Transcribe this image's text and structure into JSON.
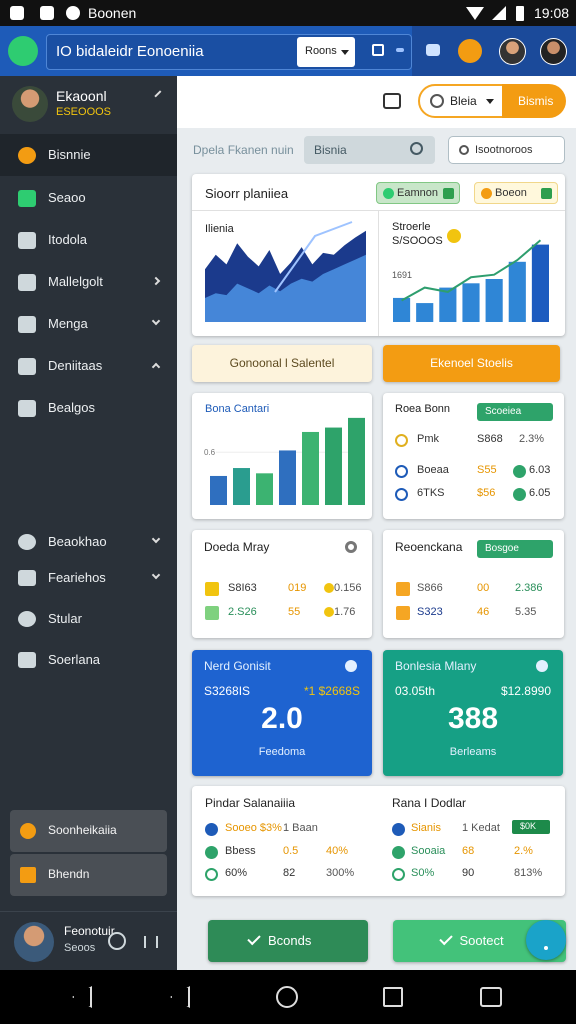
{
  "status_bar": {
    "app": "Boonen",
    "time": "19:08"
  },
  "app_bar": {
    "title": "IO bidaleidr Eonoeniia",
    "dropdown": "Roons"
  },
  "sidebar": {
    "user_name": "Ekaoonl",
    "user_sub": "ESEOOOS",
    "menu": [
      "Bisnnie",
      "Seaoo",
      "Itodola",
      "Mallelgolt",
      "Menga",
      "Deniitaas",
      "Bealgos"
    ],
    "menu2": [
      "Beaokhao",
      "Feariehos",
      "Stular",
      "Soerlana"
    ],
    "cards": [
      "Soonheikaiia",
      "Bhendn"
    ],
    "footer_name": "Feonotuir",
    "footer_sub": "Seoos"
  },
  "toolbar": {
    "dropdown": "Bleia",
    "button": "Bismis"
  },
  "search": {
    "label": "Dpela Fkanen nuin",
    "placeholder": "Bisnia",
    "button": "Isootnoroos"
  },
  "overview": {
    "title": "Sioorr planiiea",
    "chips": [
      "Eamnon",
      "Boeon"
    ],
    "area_chart": {
      "label": "Ilienia",
      "ylim": [
        0,
        100
      ],
      "series": [
        {
          "color": "#1b3a8c",
          "values": [
            55,
            70,
            60,
            82,
            68,
            58,
            75,
            50,
            62,
            78,
            60,
            72,
            70,
            80,
            88,
            95
          ]
        },
        {
          "color": "#4a8fe0",
          "values": [
            25,
            30,
            28,
            40,
            35,
            30,
            38,
            32,
            40,
            45,
            42,
            50,
            55,
            60,
            65,
            70
          ]
        }
      ]
    },
    "bar_chart": {
      "title": "Stroerle",
      "subtitle": "S/SOOOS",
      "tick": "1691",
      "ylim": [
        0,
        100
      ],
      "bars": [
        28,
        22,
        40,
        45,
        50,
        70,
        90
      ],
      "bar_color": "#2f86d6",
      "line": [
        25,
        40,
        35,
        52,
        55,
        72,
        95
      ],
      "line_color": "#2e9e6e"
    }
  },
  "actions": [
    "Gonoonal l Salentel",
    "Ekenoel Stoelis"
  ],
  "bar_card": {
    "title": "Bona Cantari",
    "ylim": [
      0,
      1
    ],
    "yticks": [
      0.6
    ],
    "values": [
      0.33,
      0.42,
      0.36,
      0.62,
      0.83,
      0.88,
      0.99
    ],
    "colors": [
      "#2f6fbf",
      "#2a9d8f",
      "#3cb371",
      "#2f6fbf",
      "#3cb371",
      "#2ea36a",
      "#2ea36a"
    ]
  },
  "roea_card": {
    "title": "Roea Bonn",
    "chip": "Scoeiea",
    "rows": [
      [
        "Pmk",
        "S868",
        "2.3%"
      ],
      [
        "Boeaa",
        "S55",
        "6.03"
      ],
      [
        "6TKS",
        "$56",
        "6.05"
      ]
    ]
  },
  "doeda_card": {
    "title": "Doeda Mray",
    "rows": [
      [
        "S8I63",
        "019",
        "0.156"
      ],
      [
        "2.S26",
        "55",
        "1.76"
      ]
    ]
  },
  "reoenc_card": {
    "title": "Reoenckana",
    "chip": "Bosgoe",
    "rows": [
      [
        "S866",
        "00",
        "2.386"
      ],
      [
        "S323",
        "46",
        "5.35"
      ]
    ]
  },
  "blue_card": {
    "title": "Nerd Gonisit",
    "left": "S3268IS",
    "right": "*1 $2668S",
    "big": "2.0",
    "foot": "Feedoma"
  },
  "teal_card": {
    "title": "Bonlesia Mlany",
    "left": "03.05th",
    "right": "$12.8990",
    "big": "388",
    "foot": "Berleams"
  },
  "pindar_card": {
    "title": "Pindar Salanaiiia",
    "rows": [
      [
        "Sooeo $3%",
        "1 Baan"
      ],
      [
        "Bbess",
        "0.5",
        "40%"
      ],
      [
        "60%",
        "82",
        "300%"
      ]
    ]
  },
  "rana_card": {
    "title": "Rana I Dodlar",
    "chip": "$0K",
    "rows": [
      [
        "Sianis",
        "1 Kedat"
      ],
      [
        "Sooaia",
        "68",
        "2.%"
      ],
      [
        "S0%",
        "90",
        "813%"
      ]
    ]
  },
  "bottom_buttons": [
    "Bconds",
    "Sootect"
  ]
}
